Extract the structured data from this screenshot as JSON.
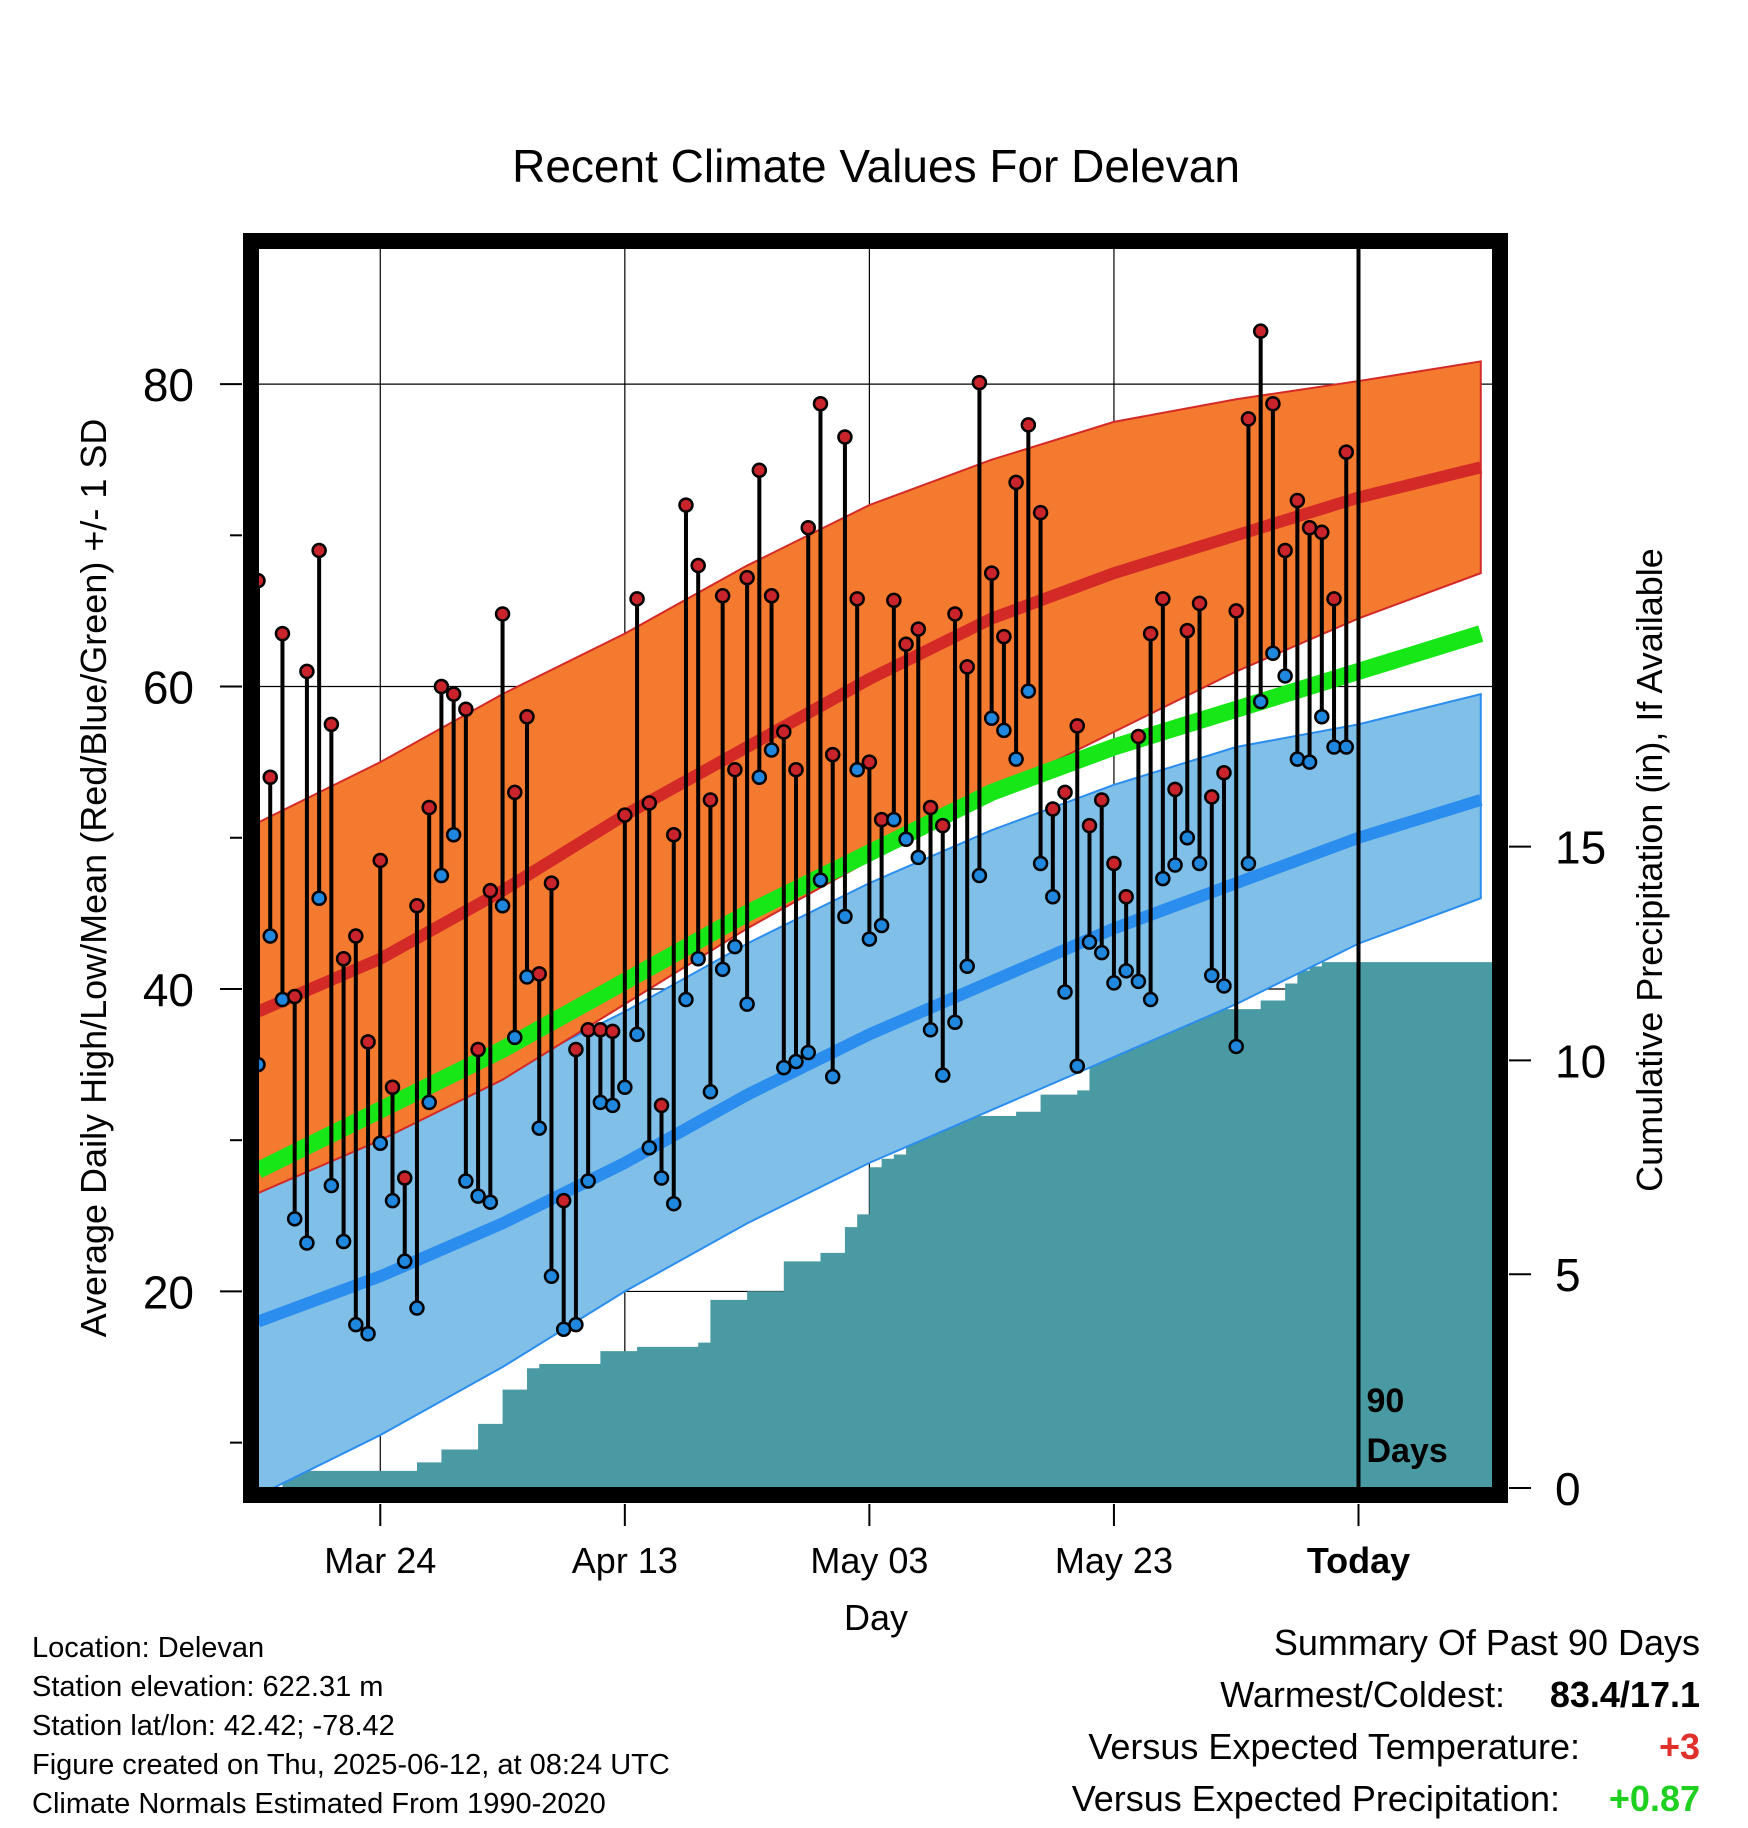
{
  "chart_data": {
    "type": "line",
    "title": "Recent Climate Values For Delevan",
    "xlabel": "Day",
    "ylabel": "Average Daily High/Low/Mean (Red/Blue/Green) +/- 1 SD",
    "y2label": "Cumulative Precipitation (in), If Available",
    "ylim": [
      7,
      89
    ],
    "y2lim": [
      0,
      29
    ],
    "yticks": [
      20,
      40,
      60,
      80
    ],
    "y2ticks": [
      0,
      5,
      10,
      15
    ],
    "x_tick_labels": [
      "Mar 24",
      "Apr 13",
      "May 03",
      "May 23",
      "Today"
    ],
    "xlim": [
      0,
      101
    ],
    "x_tick_positions": [
      10,
      30,
      50,
      70,
      90
    ],
    "today_marker_label": "90 Days",
    "grid": true,
    "colors": {
      "high_normal": "#d42a27",
      "high_band": "#f47a2f",
      "low_normal": "#2b8ded",
      "low_band": "#80c0e8",
      "mean_normal": "#17e617",
      "precip": "#4a9aa3",
      "high_marker": "#c9242b",
      "low_marker": "#1f87dd"
    },
    "normals": {
      "days": [
        0,
        10,
        20,
        30,
        40,
        50,
        60,
        70,
        80,
        90,
        100
      ],
      "high_mean": [
        38.5,
        42,
        46.5,
        51.5,
        56,
        60.5,
        64.5,
        67.5,
        70,
        72.5,
        74.5
      ],
      "high_upper": [
        51,
        55,
        59.5,
        63.5,
        68,
        72,
        75,
        77.5,
        79,
        80.2,
        81.5
      ],
      "high_lower": [
        26.5,
        30,
        34,
        39,
        44,
        48.5,
        53,
        57,
        61,
        64.5,
        67.5
      ],
      "low_mean": [
        18,
        21,
        24.5,
        28.5,
        33,
        37,
        40.5,
        44,
        47,
        50,
        52.5
      ],
      "low_upper": [
        29.5,
        31.5,
        34.5,
        38.5,
        43,
        47,
        50.5,
        53.5,
        56,
        57.5,
        59.5
      ],
      "low_lower": [
        6.5,
        10.5,
        15,
        20,
        24.5,
        28.5,
        32,
        35.5,
        39,
        43,
        46
      ],
      "mean_normal": [
        28,
        32,
        36,
        40.5,
        45,
        49,
        53,
        56,
        58.5,
        61,
        63.5
      ]
    },
    "daily_high": [
      67,
      54,
      63.5,
      39.5,
      61,
      69,
      57.5,
      42,
      43.5,
      36.5,
      48.5,
      33.5,
      27.5,
      45.5,
      52,
      60,
      59.5,
      58.5,
      36,
      46.5,
      64.8,
      53,
      58,
      41,
      47,
      26,
      36,
      37.3,
      37.3,
      37.2,
      51.5,
      65.8,
      52.3,
      32.3,
      50.2,
      72,
      68,
      52.5,
      66,
      54.5,
      67.2,
      74.3,
      66,
      57,
      54.5,
      70.5,
      78.7,
      55.5,
      76.5,
      65.8,
      55,
      51.2,
      65.7,
      62.8,
      63.8,
      52,
      50.8,
      64.8,
      61.3,
      80.1,
      67.5,
      63.3,
      73.5,
      77.3,
      71.5,
      51.9,
      53,
      57.4,
      50.8,
      52.5,
      48.3,
      46.1,
      56.7,
      63.5,
      65.8,
      53.2,
      63.7,
      65.5,
      52.7,
      54.3,
      65,
      77.7,
      83.5,
      78.7,
      69,
      72.3,
      70.5,
      70.2,
      65.8,
      75.5
    ],
    "daily_low": [
      35,
      43.5,
      39.3,
      24.8,
      23.2,
      46,
      27,
      23.3,
      17.8,
      17.2,
      29.8,
      26,
      22,
      18.9,
      32.5,
      47.5,
      50.2,
      27.3,
      26.3,
      25.9,
      45.5,
      36.8,
      40.8,
      30.8,
      21,
      17.5,
      17.8,
      27.3,
      32.5,
      32.3,
      33.5,
      37,
      29.5,
      27.5,
      25.8,
      39.3,
      42,
      33.2,
      41.3,
      42.8,
      39,
      54,
      55.8,
      34.8,
      35.2,
      35.8,
      47.2,
      34.2,
      44.8,
      54.5,
      43.3,
      44.2,
      51.2,
      49.9,
      48.7,
      37.3,
      34.3,
      37.8,
      41.5,
      47.5,
      57.9,
      57.1,
      55.2,
      59.7,
      48.3,
      46.1,
      39.8,
      34.9,
      43.1,
      42.4,
      40.4,
      41.2,
      40.5,
      39.3,
      47.3,
      48.2,
      50,
      48.3,
      40.9,
      40.2,
      36.2,
      48.3,
      59,
      62.2,
      60.7,
      55.2,
      55,
      58,
      56,
      56
    ],
    "precip_cum": {
      "days": [
        0,
        1,
        2,
        3,
        13,
        15,
        18,
        19,
        20,
        21,
        22,
        23,
        25,
        28,
        31,
        36,
        37,
        40,
        41,
        43,
        44,
        46,
        47,
        48,
        49,
        50,
        51,
        52,
        53,
        54,
        55,
        60,
        62,
        64,
        65,
        67,
        68,
        69,
        70,
        71,
        73,
        74,
        75,
        76,
        77,
        80,
        81,
        82,
        83,
        84,
        85,
        86,
        87,
        88,
        89,
        90,
        101
      ],
      "values": [
        0,
        0,
        0.4,
        0.4,
        0.6,
        0.9,
        1.5,
        1.5,
        2.3,
        2.3,
        2.8,
        2.9,
        2.9,
        3.2,
        3.3,
        3.4,
        4.4,
        4.6,
        4.6,
        5.3,
        5.3,
        5.5,
        5.5,
        6.1,
        6.4,
        7.5,
        7.7,
        7.8,
        8.2,
        8.6,
        8.7,
        8.7,
        8.8,
        9.2,
        9.2,
        9.3,
        10.6,
        10.7,
        10.9,
        10.9,
        11.1,
        11.1,
        11.1,
        11.2,
        11.2,
        11.2,
        11.2,
        11.4,
        11.4,
        11.8,
        12.1,
        12.2,
        12.3,
        12.3,
        12.3,
        12.3,
        12.3
      ]
    }
  },
  "info": {
    "location": "Location: Delevan",
    "elevation": "Station elevation: 622.31 m",
    "latlon": "Station lat/lon: 42.42; -78.42",
    "created": "Figure created on Thu, 2025-06-12, at 08:24 UTC",
    "normals": "Climate Normals Estimated From 1990-2020"
  },
  "summary": {
    "title": "Summary Of Past 90 Days",
    "warmest_label": "Warmest/Coldest:",
    "warmest_value": "83.4/17.1",
    "temp_label": "Versus Expected Temperature:",
    "temp_value": "+3",
    "temp_color": "#e0302b",
    "precip_label": "Versus Expected Precipitation:",
    "precip_value": "+0.87",
    "precip_color": "#20d020"
  }
}
